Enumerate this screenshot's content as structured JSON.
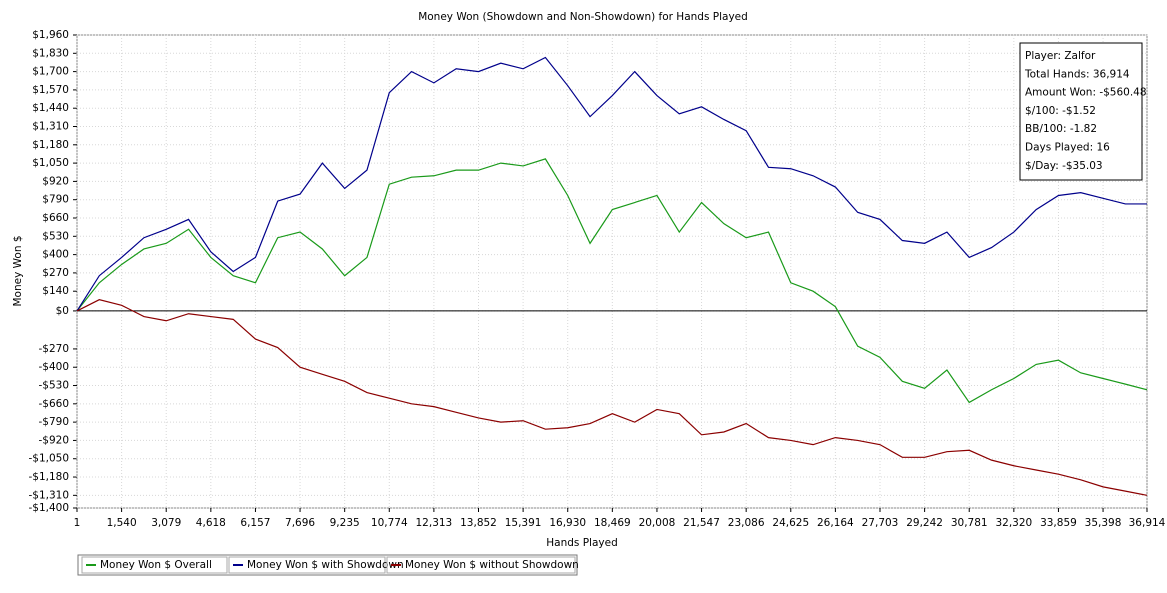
{
  "chart_data": {
    "type": "line",
    "title": "Money Won (Showdown and Non-Showdown) for Hands Played",
    "x_label": "Hands Played",
    "y_label": "Money Won $",
    "grid": true,
    "legend_position": "bottom",
    "xlim": [
      1,
      36914
    ],
    "ylim": [
      -1400,
      1960
    ],
    "xticks": [
      1,
      {
        "value": 1540,
        "label": "1,540"
      },
      {
        "value": 3079,
        "label": "3,079"
      },
      {
        "value": 4618,
        "label": "4,618"
      },
      {
        "value": 6157,
        "label": "6,157"
      },
      {
        "value": 7696,
        "label": "7,696"
      },
      {
        "value": 9235,
        "label": "9,235"
      },
      {
        "value": 10774,
        "label": "10,774"
      },
      {
        "value": 12313,
        "label": "12,313"
      },
      {
        "value": 13852,
        "label": "13,852"
      },
      {
        "value": 15391,
        "label": "15,391"
      },
      {
        "value": 16930,
        "label": "16,930"
      },
      {
        "value": 18469,
        "label": "18,469"
      },
      {
        "value": 20008,
        "label": "20,008"
      },
      {
        "value": 21547,
        "label": "21,547"
      },
      {
        "value": 23086,
        "label": "23,086"
      },
      {
        "value": 24625,
        "label": "24,625"
      },
      {
        "value": 26164,
        "label": "26,164"
      },
      {
        "value": 27703,
        "label": "27,703"
      },
      {
        "value": 29242,
        "label": "29,242"
      },
      {
        "value": 30781,
        "label": "30,781"
      },
      {
        "value": 32320,
        "label": "32,320"
      },
      {
        "value": 33859,
        "label": "33,859"
      },
      {
        "value": 35398,
        "label": "35,398"
      },
      {
        "value": 36914,
        "label": "36,914"
      }
    ],
    "yticks": [
      {
        "value": 1960,
        "label": "$1,960"
      },
      {
        "value": 1830,
        "label": "$1,830"
      },
      {
        "value": 1700,
        "label": "$1,700"
      },
      {
        "value": 1570,
        "label": "$1,570"
      },
      {
        "value": 1440,
        "label": "$1,440"
      },
      {
        "value": 1310,
        "label": "$1,310"
      },
      {
        "value": 1180,
        "label": "$1,180"
      },
      {
        "value": 1050,
        "label": "$1,050"
      },
      {
        "value": 920,
        "label": "$920"
      },
      {
        "value": 790,
        "label": "$790"
      },
      {
        "value": 660,
        "label": "$660"
      },
      {
        "value": 530,
        "label": "$530"
      },
      {
        "value": 400,
        "label": "$400"
      },
      {
        "value": 270,
        "label": "$270"
      },
      {
        "value": 140,
        "label": "$140"
      },
      {
        "value": 0,
        "label": "$0"
      },
      {
        "value": -270,
        "label": "-$270"
      },
      {
        "value": -400,
        "label": "-$400"
      },
      {
        "value": -530,
        "label": "-$530"
      },
      {
        "value": -660,
        "label": "-$660"
      },
      {
        "value": -790,
        "label": "-$790"
      },
      {
        "value": -920,
        "label": "-$920"
      },
      {
        "value": -1050,
        "label": "-$1,050"
      },
      {
        "value": -1180,
        "label": "-$1,180"
      },
      {
        "value": -1310,
        "label": "-$1,310"
      },
      {
        "value": -1400,
        "label": "-$1,400"
      }
    ],
    "x": [
      1,
      770,
      1540,
      2310,
      3079,
      3850,
      4618,
      5390,
      6157,
      6925,
      7696,
      8465,
      9235,
      10004,
      10774,
      11543,
      12313,
      13082,
      13852,
      14621,
      15391,
      16160,
      16930,
      17700,
      18469,
      19240,
      20008,
      20778,
      21547,
      22317,
      23086,
      23856,
      24625,
      25395,
      26164,
      26934,
      27703,
      28473,
      29242,
      30012,
      30781,
      31551,
      32320,
      33090,
      33859,
      34628,
      35398,
      36168,
      36914
    ],
    "series": [
      {
        "name": "Money Won $ Overall",
        "color": "#1a9a1a",
        "values": [
          0,
          200,
          330,
          440,
          480,
          580,
          380,
          250,
          200,
          520,
          560,
          440,
          250,
          380,
          900,
          950,
          960,
          1000,
          1000,
          1050,
          1030,
          1080,
          820,
          480,
          720,
          770,
          820,
          560,
          770,
          620,
          520,
          560,
          200,
          140,
          30,
          -250,
          -330,
          -500,
          -550,
          -420,
          -650,
          -560,
          -480,
          -380,
          -350,
          -440,
          -480,
          -520,
          -560
        ]
      },
      {
        "name": "Money Won $ with Showdown",
        "color": "#00008b",
        "values": [
          0,
          250,
          380,
          520,
          580,
          650,
          420,
          280,
          380,
          780,
          830,
          1050,
          870,
          1000,
          1550,
          1700,
          1620,
          1720,
          1700,
          1760,
          1720,
          1800,
          1600,
          1380,
          1530,
          1700,
          1530,
          1400,
          1450,
          1360,
          1280,
          1020,
          1010,
          960,
          880,
          700,
          650,
          500,
          480,
          560,
          380,
          450,
          560,
          720,
          820,
          840,
          800,
          760,
          760
        ]
      },
      {
        "name": "Money Won $ without Showdown",
        "color": "#8b0000",
        "values": [
          0,
          80,
          40,
          -40,
          -70,
          -20,
          -40,
          -60,
          -200,
          -260,
          -400,
          -450,
          -500,
          -580,
          -620,
          -660,
          -680,
          -720,
          -760,
          -790,
          -780,
          -840,
          -830,
          -800,
          -730,
          -790,
          -700,
          -730,
          -880,
          -860,
          -800,
          -900,
          -920,
          -950,
          -900,
          -920,
          -950,
          -1040,
          -1040,
          -1000,
          -990,
          -1060,
          -1100,
          -1130,
          -1160,
          -1200,
          -1250,
          -1280,
          -1310
        ]
      }
    ],
    "annotations": [
      "Player: Zalfor",
      "Total Hands: 36,914",
      "Amount Won: -$560.48",
      "$/100: -$1.52",
      "BB/100: -1.82",
      "Days Played: 16",
      "$/Day: -$35.03"
    ]
  }
}
